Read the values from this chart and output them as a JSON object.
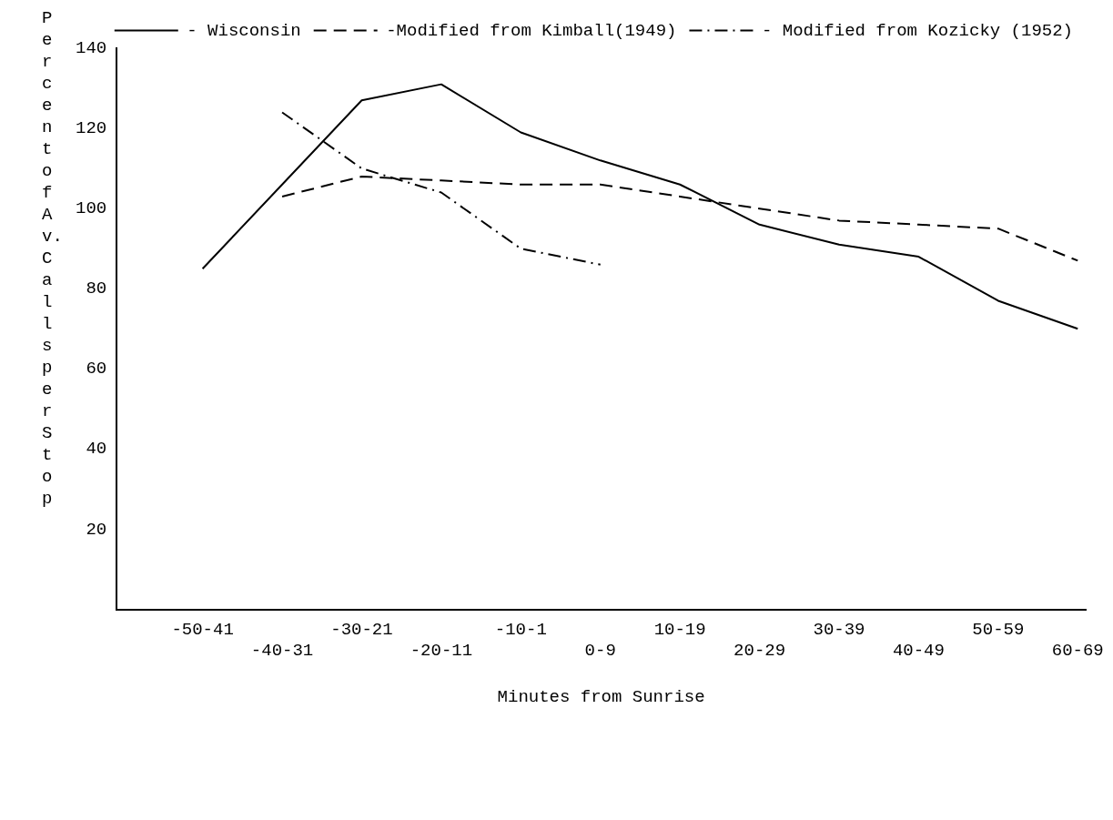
{
  "chart_data": {
    "type": "line",
    "xlabel": "Minutes from Sunrise",
    "ylabel": "Percent of Av. Calls per Stop",
    "categories": [
      "-50-41",
      "-40-31",
      "-30-21",
      "-20-11",
      "-10-1",
      "0-9",
      "10-19",
      "20-29",
      "30-39",
      "40-49",
      "50-59",
      "60-69"
    ],
    "ylim": [
      0,
      140
    ],
    "yticks": [
      20,
      40,
      60,
      80,
      100,
      120,
      140
    ],
    "grid": false,
    "legend": "top right",
    "marker": "none",
    "series": [
      {
        "name": "- Wisconsin",
        "color": "#000000",
        "line_style": "solid",
        "values": [
          85,
          106,
          127,
          131,
          119,
          112,
          106,
          96,
          91,
          88,
          77,
          70
        ]
      },
      {
        "name": "-Modified from Kimball(1949)",
        "color": "#000000",
        "line_style": "dashed",
        "values": [
          null,
          103,
          108,
          107,
          106,
          106,
          103,
          100,
          97,
          96,
          95,
          87
        ]
      },
      {
        "name": "- Modified from Kozicky (1952)",
        "color": "#000000",
        "line_style": "dashdot",
        "values": [
          null,
          124,
          110,
          104,
          90,
          86,
          null,
          null,
          null,
          null,
          null,
          null
        ]
      }
    ]
  }
}
